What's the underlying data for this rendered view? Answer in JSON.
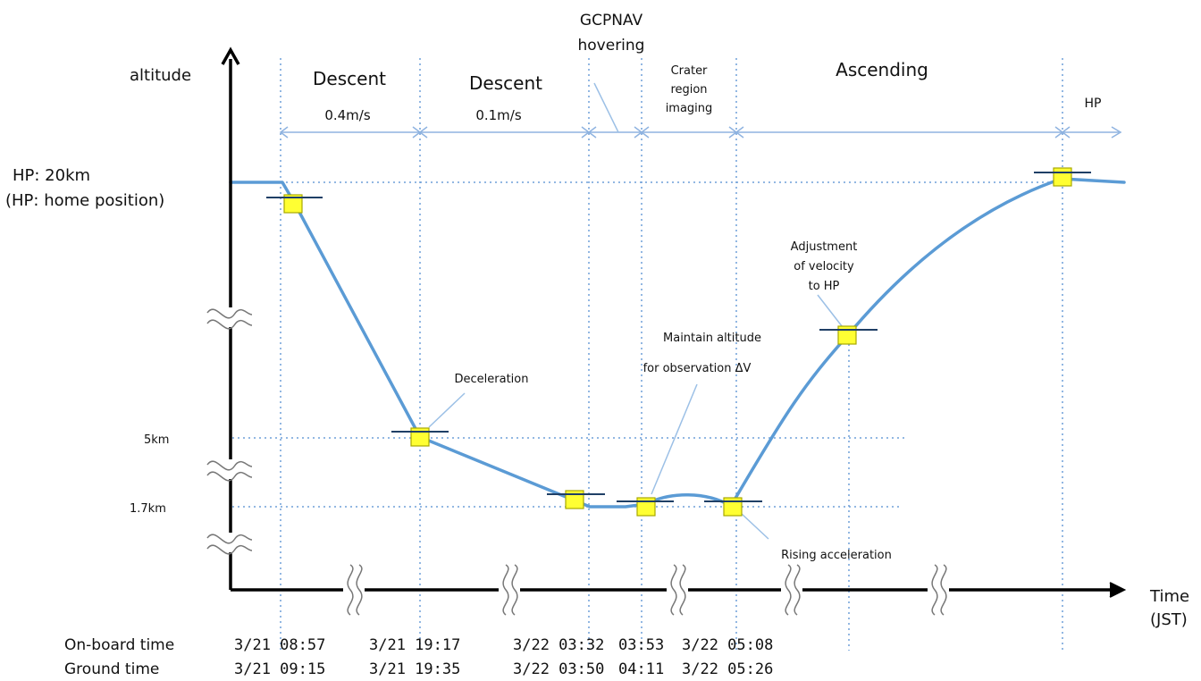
{
  "axes": {
    "y_label": "altitude",
    "x_label_line1": "Time",
    "x_label_line2": "(JST)"
  },
  "altitude_labels": {
    "hp_line1": "HP: 20km",
    "hp_line2": "(HP: home position)",
    "five_km": "5km",
    "one_seven_km": "1.7km"
  },
  "phases": {
    "descent1_title": "Descent",
    "descent1_speed": "0.4m/s",
    "descent2_title": "Descent",
    "descent2_speed": "0.1m/s",
    "gcpnav_line1": "GCPNAV",
    "gcpnav_line2": "hovering",
    "crater_line1": "Crater",
    "crater_line2": "region",
    "crater_line3": "imaging",
    "ascending": "Ascending",
    "hp": "HP"
  },
  "annotations": {
    "deceleration": "Deceleration",
    "maintain_line1": "Maintain altitude",
    "maintain_line2": "for observation ΔV",
    "adjust_line1": "Adjustment",
    "adjust_line2": "of velocity",
    "adjust_line3": "to HP",
    "rising": "Rising acceleration"
  },
  "time_rows": {
    "onboard_label": "On-board time",
    "ground_label": "Ground time",
    "onboard": [
      "3/21 08:57",
      "3/21 19:17",
      "3/22 03:32",
      "03:53",
      "3/22 05:08"
    ],
    "ground": [
      "3/21 09:15",
      "3/21 19:35",
      "3/22 03:50",
      "04:11",
      "3/22 05:26"
    ]
  },
  "colors": {
    "path": "#5b9bd5",
    "marker": "#ffff33",
    "grid": "#6f9fd8"
  }
}
